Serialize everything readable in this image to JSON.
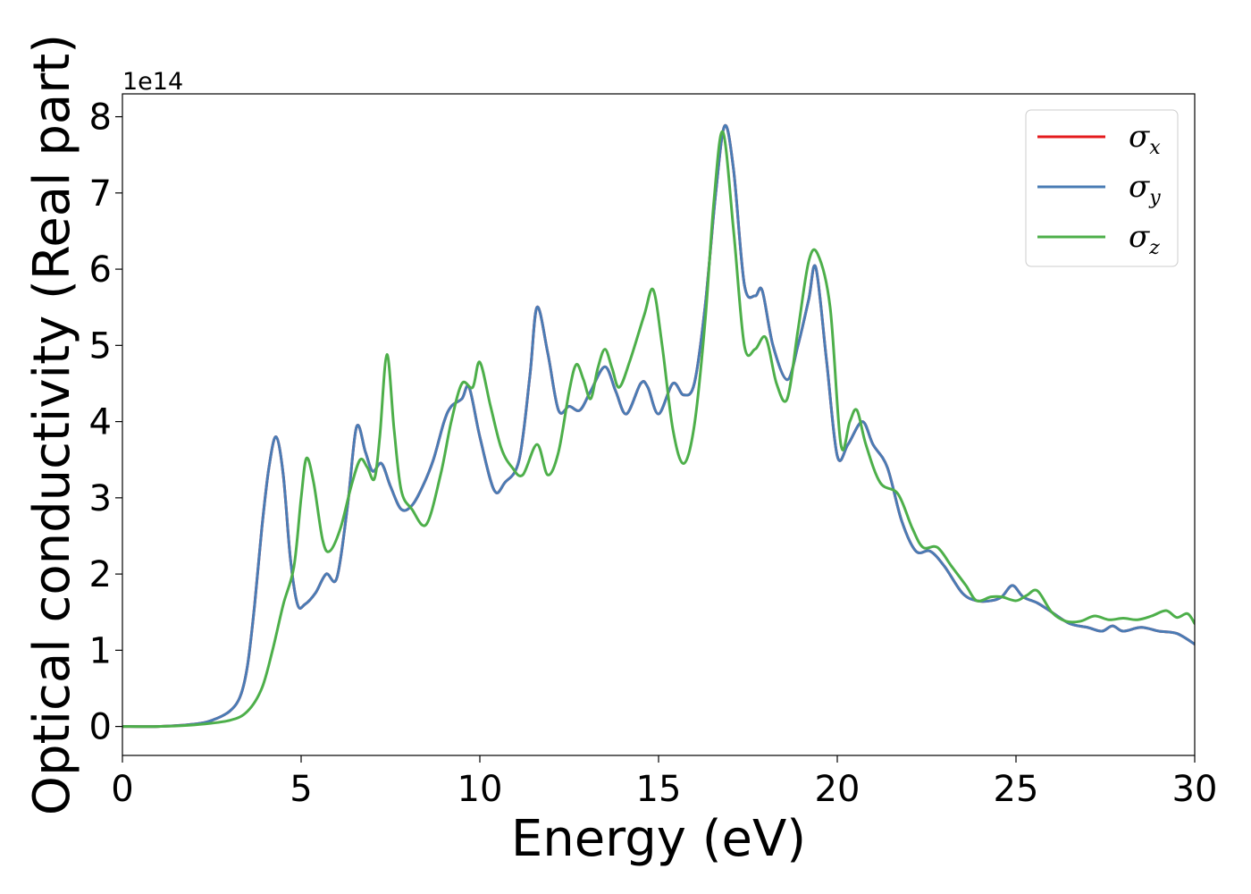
{
  "chart_data": {
    "type": "line",
    "xlabel": "Energy (eV)",
    "ylabel": "Optical conductivity (Real part)",
    "y_offset_label": "1e14",
    "xlim": [
      0,
      30
    ],
    "ylim": [
      -0.38,
      8.3
    ],
    "x_ticks": [
      0,
      5,
      10,
      15,
      20,
      25,
      30
    ],
    "y_ticks": [
      0,
      1,
      2,
      3,
      4,
      5,
      6,
      7,
      8
    ],
    "grid": false,
    "legend_position": "top-right",
    "series": [
      {
        "name": "σ_x",
        "symbol": "σ",
        "subscript": "x",
        "color": "#e41a1c",
        "points": [
          [
            0,
            0
          ],
          [
            1,
            0
          ],
          [
            2,
            0.03
          ],
          [
            2.5,
            0.08
          ],
          [
            3,
            0.2
          ],
          [
            3.3,
            0.4
          ],
          [
            3.5,
            0.8
          ],
          [
            3.7,
            1.6
          ],
          [
            3.9,
            2.6
          ],
          [
            4.1,
            3.4
          ],
          [
            4.3,
            3.8
          ],
          [
            4.5,
            3.3
          ],
          [
            4.7,
            2.2
          ],
          [
            4.9,
            1.6
          ],
          [
            5.1,
            1.6
          ],
          [
            5.4,
            1.75
          ],
          [
            5.7,
            2.0
          ],
          [
            6.0,
            1.95
          ],
          [
            6.3,
            2.9
          ],
          [
            6.55,
            3.93
          ],
          [
            6.8,
            3.6
          ],
          [
            7.0,
            3.35
          ],
          [
            7.25,
            3.45
          ],
          [
            7.5,
            3.15
          ],
          [
            7.8,
            2.85
          ],
          [
            8.1,
            2.9
          ],
          [
            8.4,
            3.15
          ],
          [
            8.7,
            3.5
          ],
          [
            9.0,
            4.0
          ],
          [
            9.2,
            4.2
          ],
          [
            9.5,
            4.3
          ],
          [
            9.7,
            4.45
          ],
          [
            10.0,
            3.8
          ],
          [
            10.4,
            3.1
          ],
          [
            10.7,
            3.2
          ],
          [
            11.1,
            3.5
          ],
          [
            11.4,
            4.6
          ],
          [
            11.6,
            5.5
          ],
          [
            11.9,
            4.9
          ],
          [
            12.2,
            4.15
          ],
          [
            12.5,
            4.2
          ],
          [
            12.8,
            4.15
          ],
          [
            13.1,
            4.4
          ],
          [
            13.5,
            4.72
          ],
          [
            13.8,
            4.4
          ],
          [
            14.1,
            4.1
          ],
          [
            14.5,
            4.5
          ],
          [
            14.7,
            4.45
          ],
          [
            15.0,
            4.1
          ],
          [
            15.4,
            4.5
          ],
          [
            15.7,
            4.35
          ],
          [
            16.0,
            4.5
          ],
          [
            16.3,
            5.5
          ],
          [
            16.6,
            7.0
          ],
          [
            16.85,
            7.88
          ],
          [
            17.1,
            7.3
          ],
          [
            17.4,
            5.8
          ],
          [
            17.7,
            5.65
          ],
          [
            17.9,
            5.72
          ],
          [
            18.2,
            5.0
          ],
          [
            18.6,
            4.55
          ],
          [
            18.9,
            5.0
          ],
          [
            19.2,
            5.6
          ],
          [
            19.4,
            6.02
          ],
          [
            19.7,
            4.8
          ],
          [
            20.0,
            3.55
          ],
          [
            20.3,
            3.7
          ],
          [
            20.7,
            4.0
          ],
          [
            21.0,
            3.7
          ],
          [
            21.4,
            3.4
          ],
          [
            21.8,
            2.7
          ],
          [
            22.2,
            2.3
          ],
          [
            22.6,
            2.3
          ],
          [
            23.0,
            2.1
          ],
          [
            23.5,
            1.75
          ],
          [
            23.9,
            1.65
          ],
          [
            24.3,
            1.65
          ],
          [
            24.6,
            1.7
          ],
          [
            24.9,
            1.85
          ],
          [
            25.2,
            1.7
          ],
          [
            25.6,
            1.62
          ],
          [
            26.0,
            1.5
          ],
          [
            26.5,
            1.35
          ],
          [
            27.0,
            1.3
          ],
          [
            27.4,
            1.25
          ],
          [
            27.7,
            1.32
          ],
          [
            28.0,
            1.25
          ],
          [
            28.5,
            1.3
          ],
          [
            29.0,
            1.25
          ],
          [
            29.5,
            1.22
          ],
          [
            30.0,
            1.08
          ]
        ]
      },
      {
        "name": "σ_y",
        "symbol": "σ",
        "subscript": "y",
        "color": "#4a7cb5",
        "points": [
          [
            0,
            0
          ],
          [
            1,
            0
          ],
          [
            2,
            0.03
          ],
          [
            2.5,
            0.08
          ],
          [
            3,
            0.2
          ],
          [
            3.3,
            0.4
          ],
          [
            3.5,
            0.8
          ],
          [
            3.7,
            1.6
          ],
          [
            3.9,
            2.6
          ],
          [
            4.1,
            3.4
          ],
          [
            4.3,
            3.8
          ],
          [
            4.5,
            3.3
          ],
          [
            4.7,
            2.2
          ],
          [
            4.9,
            1.6
          ],
          [
            5.1,
            1.6
          ],
          [
            5.4,
            1.75
          ],
          [
            5.7,
            2.0
          ],
          [
            6.0,
            1.95
          ],
          [
            6.3,
            2.9
          ],
          [
            6.55,
            3.93
          ],
          [
            6.8,
            3.6
          ],
          [
            7.0,
            3.35
          ],
          [
            7.25,
            3.45
          ],
          [
            7.5,
            3.15
          ],
          [
            7.8,
            2.85
          ],
          [
            8.1,
            2.9
          ],
          [
            8.4,
            3.15
          ],
          [
            8.7,
            3.5
          ],
          [
            9.0,
            4.0
          ],
          [
            9.2,
            4.2
          ],
          [
            9.5,
            4.3
          ],
          [
            9.7,
            4.45
          ],
          [
            10.0,
            3.8
          ],
          [
            10.4,
            3.1
          ],
          [
            10.7,
            3.2
          ],
          [
            11.1,
            3.5
          ],
          [
            11.4,
            4.6
          ],
          [
            11.6,
            5.5
          ],
          [
            11.9,
            4.9
          ],
          [
            12.2,
            4.15
          ],
          [
            12.5,
            4.2
          ],
          [
            12.8,
            4.15
          ],
          [
            13.1,
            4.4
          ],
          [
            13.5,
            4.72
          ],
          [
            13.8,
            4.4
          ],
          [
            14.1,
            4.1
          ],
          [
            14.5,
            4.5
          ],
          [
            14.7,
            4.45
          ],
          [
            15.0,
            4.1
          ],
          [
            15.4,
            4.5
          ],
          [
            15.7,
            4.35
          ],
          [
            16.0,
            4.5
          ],
          [
            16.3,
            5.5
          ],
          [
            16.6,
            7.0
          ],
          [
            16.85,
            7.88
          ],
          [
            17.1,
            7.3
          ],
          [
            17.4,
            5.8
          ],
          [
            17.7,
            5.65
          ],
          [
            17.9,
            5.72
          ],
          [
            18.2,
            5.0
          ],
          [
            18.6,
            4.55
          ],
          [
            18.9,
            5.0
          ],
          [
            19.2,
            5.6
          ],
          [
            19.4,
            6.02
          ],
          [
            19.7,
            4.8
          ],
          [
            20.0,
            3.55
          ],
          [
            20.3,
            3.7
          ],
          [
            20.7,
            4.0
          ],
          [
            21.0,
            3.7
          ],
          [
            21.4,
            3.4
          ],
          [
            21.8,
            2.7
          ],
          [
            22.2,
            2.3
          ],
          [
            22.6,
            2.3
          ],
          [
            23.0,
            2.1
          ],
          [
            23.5,
            1.75
          ],
          [
            23.9,
            1.65
          ],
          [
            24.3,
            1.65
          ],
          [
            24.6,
            1.7
          ],
          [
            24.9,
            1.85
          ],
          [
            25.2,
            1.7
          ],
          [
            25.6,
            1.62
          ],
          [
            26.0,
            1.5
          ],
          [
            26.5,
            1.35
          ],
          [
            27.0,
            1.3
          ],
          [
            27.4,
            1.25
          ],
          [
            27.7,
            1.32
          ],
          [
            28.0,
            1.25
          ],
          [
            28.5,
            1.3
          ],
          [
            29.0,
            1.25
          ],
          [
            29.5,
            1.22
          ],
          [
            30.0,
            1.08
          ]
        ]
      },
      {
        "name": "σ_z",
        "symbol": "σ",
        "subscript": "z",
        "color": "#4daf4a",
        "points": [
          [
            0,
            0
          ],
          [
            1,
            0
          ],
          [
            2,
            0.02
          ],
          [
            3,
            0.08
          ],
          [
            3.5,
            0.2
          ],
          [
            3.9,
            0.5
          ],
          [
            4.2,
            1.0
          ],
          [
            4.5,
            1.6
          ],
          [
            4.8,
            2.1
          ],
          [
            5.0,
            3.0
          ],
          [
            5.15,
            3.52
          ],
          [
            5.35,
            3.2
          ],
          [
            5.6,
            2.45
          ],
          [
            5.8,
            2.3
          ],
          [
            6.1,
            2.6
          ],
          [
            6.4,
            3.15
          ],
          [
            6.65,
            3.5
          ],
          [
            6.85,
            3.4
          ],
          [
            7.05,
            3.25
          ],
          [
            7.2,
            3.8
          ],
          [
            7.4,
            4.88
          ],
          [
            7.6,
            3.9
          ],
          [
            7.8,
            3.1
          ],
          [
            8.1,
            2.85
          ],
          [
            8.5,
            2.65
          ],
          [
            8.9,
            3.3
          ],
          [
            9.2,
            4.0
          ],
          [
            9.5,
            4.5
          ],
          [
            9.8,
            4.45
          ],
          [
            10.0,
            4.78
          ],
          [
            10.3,
            4.2
          ],
          [
            10.6,
            3.65
          ],
          [
            10.9,
            3.4
          ],
          [
            11.2,
            3.3
          ],
          [
            11.6,
            3.7
          ],
          [
            11.9,
            3.3
          ],
          [
            12.2,
            3.6
          ],
          [
            12.5,
            4.4
          ],
          [
            12.7,
            4.75
          ],
          [
            12.9,
            4.55
          ],
          [
            13.1,
            4.3
          ],
          [
            13.3,
            4.7
          ],
          [
            13.5,
            4.95
          ],
          [
            13.7,
            4.7
          ],
          [
            13.9,
            4.45
          ],
          [
            14.2,
            4.8
          ],
          [
            14.6,
            5.4
          ],
          [
            14.85,
            5.73
          ],
          [
            15.1,
            5.0
          ],
          [
            15.4,
            3.9
          ],
          [
            15.7,
            3.45
          ],
          [
            16.0,
            3.95
          ],
          [
            16.3,
            5.3
          ],
          [
            16.55,
            6.9
          ],
          [
            16.8,
            7.8
          ],
          [
            17.1,
            6.5
          ],
          [
            17.4,
            5.0
          ],
          [
            17.7,
            4.95
          ],
          [
            18.0,
            5.1
          ],
          [
            18.3,
            4.5
          ],
          [
            18.6,
            4.3
          ],
          [
            18.9,
            5.2
          ],
          [
            19.2,
            6.1
          ],
          [
            19.45,
            6.2
          ],
          [
            19.8,
            5.5
          ],
          [
            20.1,
            3.7
          ],
          [
            20.35,
            4.0
          ],
          [
            20.55,
            4.15
          ],
          [
            20.8,
            3.7
          ],
          [
            21.2,
            3.2
          ],
          [
            21.7,
            3.05
          ],
          [
            22.1,
            2.6
          ],
          [
            22.4,
            2.35
          ],
          [
            22.8,
            2.35
          ],
          [
            23.2,
            2.1
          ],
          [
            23.6,
            1.85
          ],
          [
            23.9,
            1.65
          ],
          [
            24.3,
            1.7
          ],
          [
            24.6,
            1.7
          ],
          [
            25.0,
            1.65
          ],
          [
            25.3,
            1.72
          ],
          [
            25.6,
            1.78
          ],
          [
            26.0,
            1.5
          ],
          [
            26.4,
            1.38
          ],
          [
            26.8,
            1.38
          ],
          [
            27.2,
            1.45
          ],
          [
            27.6,
            1.4
          ],
          [
            28.0,
            1.42
          ],
          [
            28.4,
            1.4
          ],
          [
            28.8,
            1.45
          ],
          [
            29.2,
            1.52
          ],
          [
            29.5,
            1.43
          ],
          [
            29.8,
            1.48
          ],
          [
            30.0,
            1.35
          ]
        ]
      }
    ]
  }
}
